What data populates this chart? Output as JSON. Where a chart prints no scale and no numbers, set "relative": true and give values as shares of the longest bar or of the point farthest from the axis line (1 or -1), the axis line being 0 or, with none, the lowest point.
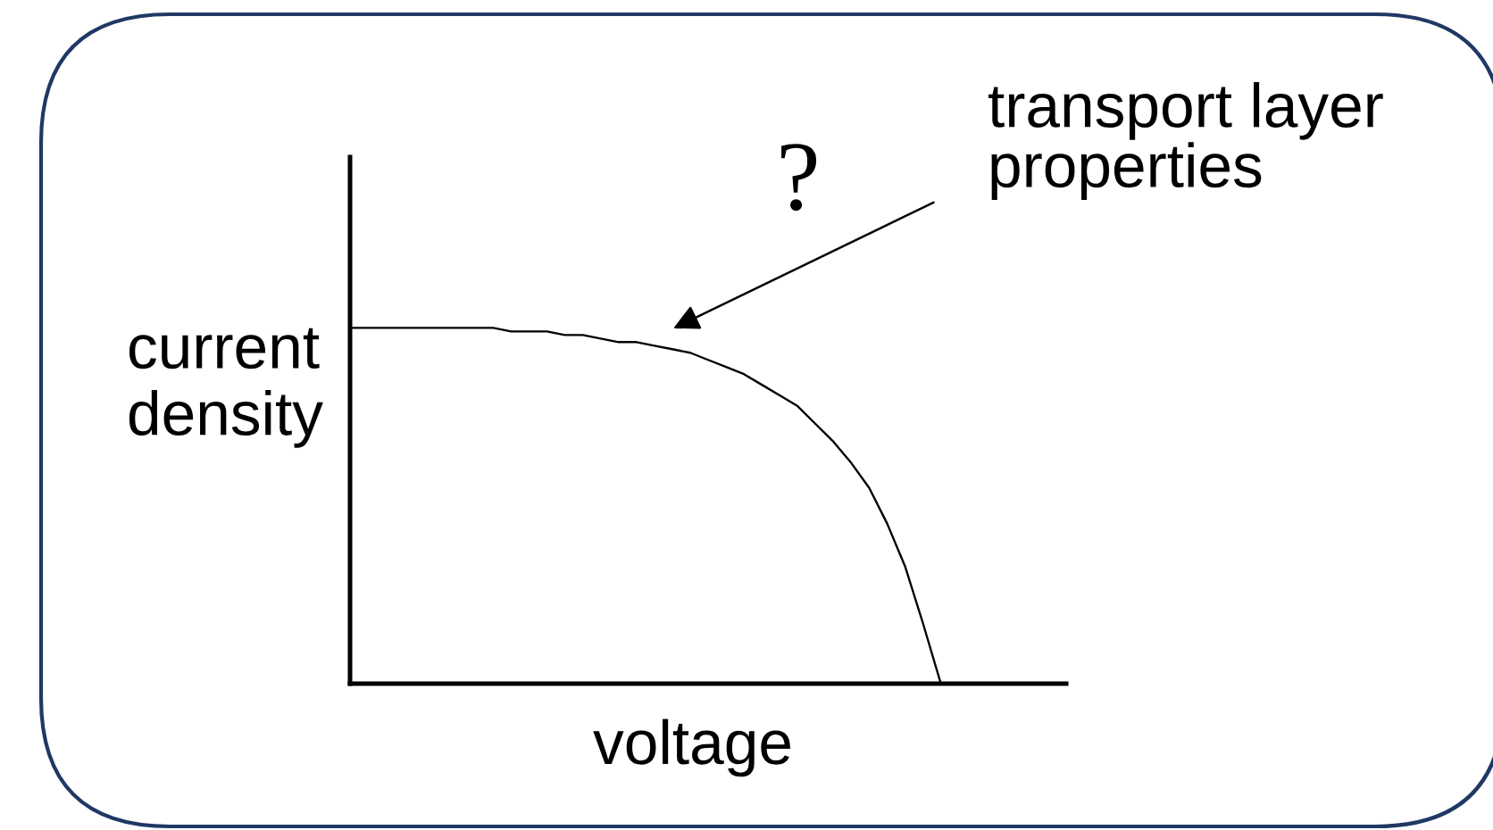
{
  "chart_data": {
    "type": "line",
    "relative": true,
    "xlabel": "voltage",
    "ylabel": "current\ndensity",
    "annotations": [
      "?",
      "transport layer\nproperties"
    ],
    "categories": [
      null,
      null,
      null,
      null,
      null,
      null,
      null,
      null,
      null,
      null,
      null,
      null,
      null,
      null,
      null,
      null,
      null,
      null,
      null,
      null,
      null,
      null,
      null,
      null,
      null,
      null,
      null,
      null,
      null,
      null,
      null,
      null,
      null,
      null,
      null,
      null,
      null,
      null,
      null,
      null,
      null
    ],
    "series": [
      {
        "color": "#000000",
        "values": [
          1.0,
          1.0,
          1.0,
          1.0,
          1.0,
          1.0,
          1.0,
          1.0,
          1.0,
          0.99,
          0.99,
          0.99,
          0.98,
          0.98,
          0.97,
          0.96,
          0.96,
          0.95,
          0.94,
          0.93,
          0.91,
          0.89,
          0.87,
          0.84,
          0.81,
          0.78,
          0.73,
          0.68,
          0.62,
          0.55,
          0.45,
          0.33,
          0.17,
          0.0,
          null,
          null,
          null,
          null,
          null,
          null,
          null
        ]
      }
    ]
  }
}
